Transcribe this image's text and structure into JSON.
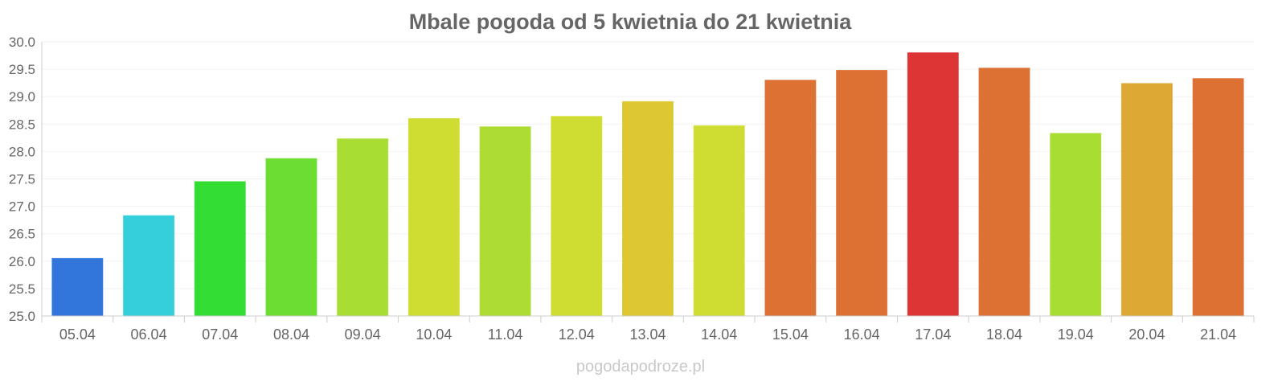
{
  "chart_data": {
    "type": "bar",
    "title": "Mbale pogoda od 5 kwietnia do 21 kwietnia",
    "xlabel": "",
    "ylabel": "",
    "ylim": [
      25.0,
      30.0
    ],
    "yticks": [
      "25.0",
      "25.5",
      "26.0",
      "26.5",
      "27.0",
      "27.5",
      "28.0",
      "28.5",
      "29.0",
      "29.5",
      "30.0"
    ],
    "grid": true,
    "categories": [
      "05.04",
      "06.04",
      "07.04",
      "08.04",
      "09.04",
      "10.04",
      "11.04",
      "12.04",
      "13.04",
      "14.04",
      "15.04",
      "16.04",
      "17.04",
      "18.04",
      "19.04",
      "20.04",
      "21.04"
    ],
    "values": [
      26.05,
      26.83,
      27.45,
      27.87,
      28.23,
      28.6,
      28.45,
      28.64,
      28.91,
      28.47,
      29.3,
      29.48,
      29.8,
      29.52,
      28.33,
      29.24,
      29.33
    ],
    "colors": [
      "#3276db",
      "#35cfdc",
      "#33dd33",
      "#6bdd33",
      "#a8dd33",
      "#cfdd33",
      "#addd33",
      "#cfdd33",
      "#ddc833",
      "#cfdd33",
      "#dd7033",
      "#dd7033",
      "#dd3535",
      "#dd7033",
      "#a8dd33",
      "#dda833",
      "#dd7033"
    ]
  },
  "watermark": "pogodapodroze.pl"
}
